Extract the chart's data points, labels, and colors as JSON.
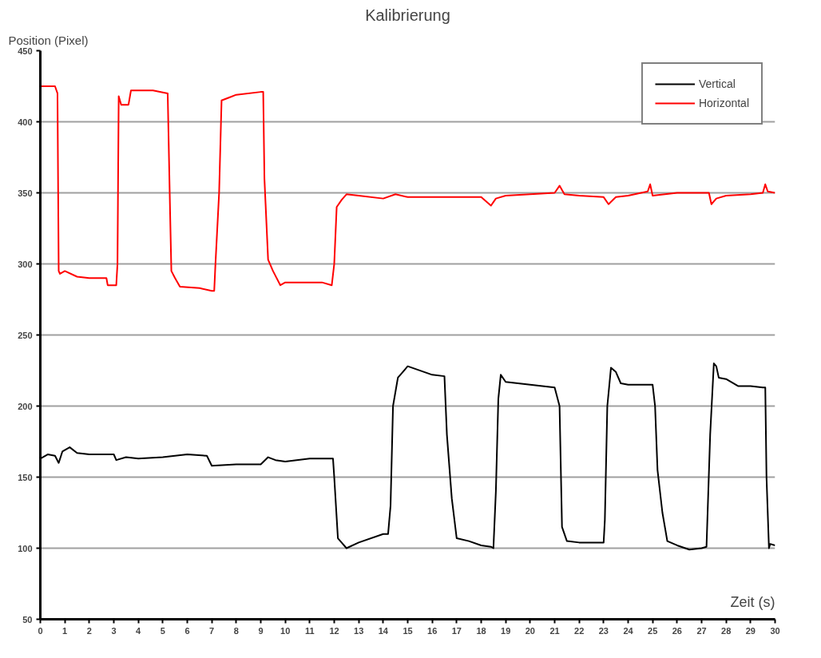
{
  "chart_data": {
    "type": "line",
    "title": "Kalibrierung",
    "ylabel": "Position (Pixel)",
    "xlabel": "Zeit (s)",
    "xlim": [
      0,
      30
    ],
    "xticks": [
      0,
      1,
      2,
      3,
      4,
      5,
      6,
      7,
      8,
      9,
      10,
      11,
      12,
      13,
      14,
      15,
      16,
      17,
      18,
      19,
      20,
      21,
      22,
      23,
      24,
      25,
      26,
      27,
      28,
      29,
      30
    ],
    "ylim": [
      50,
      450
    ],
    "yticks": [
      50,
      100,
      150,
      200,
      250,
      300,
      350,
      400,
      450
    ],
    "grid": "y",
    "legend": "top right",
    "marker": "none",
    "line_style": "solid",
    "series": [
      {
        "name": "Vertical",
        "color": "#000000",
        "x": [
          0,
          0.3,
          0.6,
          0.75,
          0.9,
          1.2,
          1.5,
          2,
          3,
          3.1,
          3.5,
          4,
          5,
          6,
          6.8,
          7,
          8,
          9,
          9.3,
          9.6,
          10,
          11,
          11.95,
          12.0,
          12.15,
          12.3,
          12.5,
          13,
          14,
          14.2,
          14.3,
          14.4,
          14.6,
          14.8,
          15,
          16,
          16.5,
          16.6,
          16.8,
          17,
          17.5,
          18,
          18.4,
          18.5,
          18.6,
          18.7,
          18.8,
          19,
          20,
          20.5,
          21,
          21.2,
          21.3,
          21.5,
          22,
          23,
          23.05,
          23.15,
          23.3,
          23.5,
          23.7,
          24,
          25,
          25.1,
          25.2,
          25.4,
          25.6,
          26,
          26.5,
          27,
          27.2,
          27.35,
          27.5,
          27.6,
          27.7,
          28,
          28.5,
          29,
          29.5,
          29.6,
          29.65,
          29.75,
          29.8,
          30
        ],
        "values": [
          163,
          166,
          165,
          160,
          168,
          171,
          167,
          166,
          166,
          162,
          164,
          163,
          164,
          166,
          165,
          158,
          159,
          159,
          164,
          162,
          161,
          163,
          163,
          150,
          107,
          104,
          100,
          104,
          110,
          110,
          130,
          200,
          220,
          224,
          228,
          222,
          221,
          180,
          135,
          107,
          105,
          102,
          101,
          100,
          140,
          205,
          222,
          217,
          215,
          214,
          213,
          200,
          115,
          105,
          104,
          104,
          120,
          200,
          227,
          224,
          216,
          215,
          215,
          200,
          155,
          125,
          105,
          102,
          99,
          100,
          101,
          180,
          230,
          228,
          220,
          219,
          214,
          214,
          213,
          213,
          150,
          100,
          103,
          102
        ]
      },
      {
        "name": "Horizontal",
        "color": "#ff0000",
        "x": [
          0,
          0.6,
          0.7,
          0.75,
          0.8,
          1,
          1.5,
          2,
          2.7,
          2.75,
          3.1,
          3.15,
          3.2,
          3.3,
          3.6,
          3.7,
          4.6,
          5.2,
          5.3,
          5.35,
          5.5,
          5.7,
          6.5,
          7.0,
          7.1,
          7.15,
          7.3,
          7.4,
          7.7,
          8.0,
          9.0,
          9.1,
          9.15,
          9.3,
          9.5,
          9.8,
          10,
          11.5,
          11.9,
          12.0,
          12.1,
          12.3,
          12.5,
          13,
          14,
          14.5,
          15,
          16,
          16.5,
          18,
          18.4,
          18.6,
          19,
          20,
          21,
          21.2,
          21.4,
          22,
          23,
          23.2,
          23.5,
          24,
          24.8,
          24.9,
          25,
          26,
          27,
          27.3,
          27.4,
          27.6,
          28,
          29,
          29.5,
          29.6,
          29.7,
          30
        ],
        "values": [
          425,
          425,
          420,
          295,
          293,
          295,
          291,
          290,
          290,
          285,
          285,
          300,
          418,
          412,
          412,
          422,
          422,
          420,
          335,
          295,
          290,
          284,
          283,
          281,
          281,
          300,
          350,
          415,
          417,
          419,
          421,
          421,
          360,
          303,
          295,
          285,
          287,
          287,
          285,
          300,
          340,
          345,
          349,
          348,
          346,
          349,
          347,
          347,
          347,
          347,
          341,
          346,
          348,
          349,
          350,
          355,
          349,
          348,
          347,
          342,
          347,
          348,
          351,
          356,
          348,
          350,
          350,
          350,
          342,
          346,
          348,
          349,
          350,
          356,
          351,
          350
        ]
      }
    ]
  }
}
